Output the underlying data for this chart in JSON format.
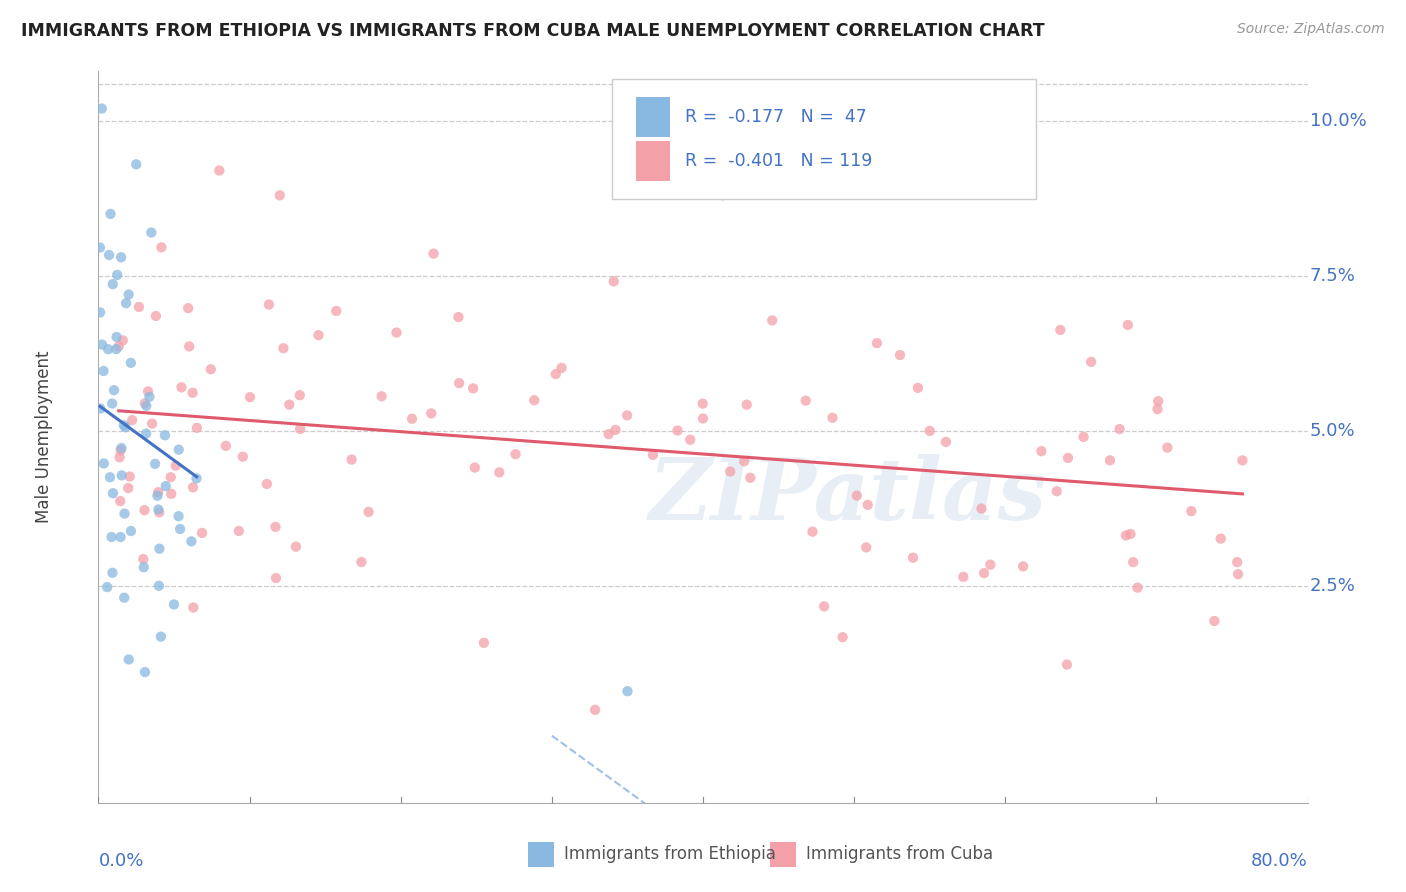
{
  "title": "IMMIGRANTS FROM ETHIOPIA VS IMMIGRANTS FROM CUBA MALE UNEMPLOYMENT CORRELATION CHART",
  "source": "Source: ZipAtlas.com",
  "ylabel": "Male Unemployment",
  "xmin": 0.0,
  "xmax": 0.8,
  "ymin": -0.01,
  "ymax": 0.108,
  "ytick_vals": [
    0.025,
    0.05,
    0.075,
    0.1
  ],
  "ytick_labels": [
    "2.5%",
    "5.0%",
    "7.5%",
    "10.0%"
  ],
  "ethiopia_color": "#89b8e0",
  "cuba_color": "#f4a0a8",
  "trend_ethiopia_color": "#4472c4",
  "trend_cuba_color": "#e05a6e",
  "trend_dashed_color": "#a0c0e8",
  "background_color": "#ffffff",
  "grid_color": "#cccccc",
  "title_color": "#222222",
  "axis_label_color": "#4472c4",
  "watermark_text": "ZIPatlas",
  "eth_seed": 12,
  "cuba_seed": 77
}
